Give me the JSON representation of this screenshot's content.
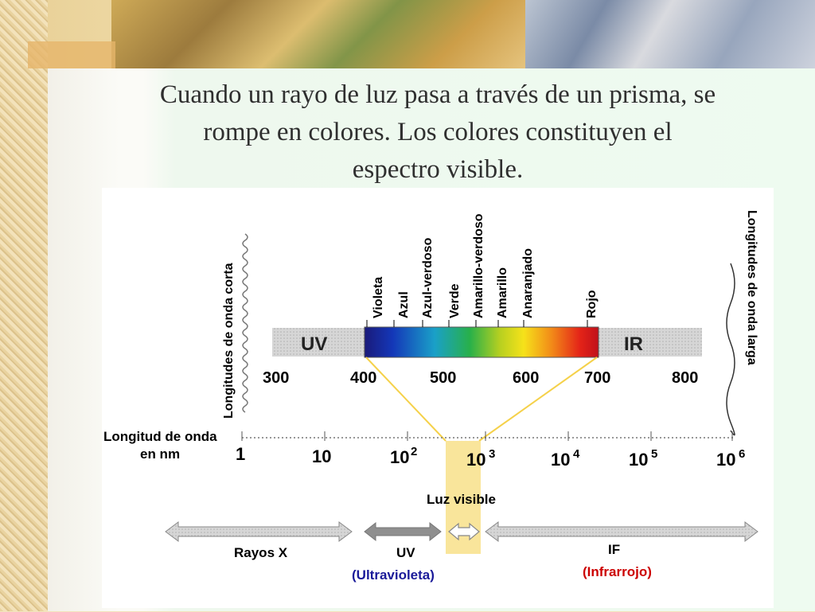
{
  "slide": {
    "title_lines": [
      "Cuando un rayo de luz pasa a través de un prisma, se",
      "rompe en colores. Los colores constituyen el",
      "espectro visible."
    ]
  },
  "figure": {
    "left_label": "Longitudes de onda corta",
    "right_label": "Longitudes de onda larga",
    "colors": [
      "Violeta",
      "Azul",
      "Azul-verdoso",
      "Verde",
      "Amarillo-verdoso",
      "Amarillo",
      "Anaranjado",
      "Rojo"
    ],
    "band_uv_label": "UV",
    "band_ir_label": "IR",
    "nm_ticks": [
      "300",
      "400",
      "500",
      "600",
      "700",
      "800"
    ],
    "axis_title_line1": "Longitud de onda",
    "axis_title_line2": "en nm",
    "log_ticks": [
      {
        "base": "1",
        "exp": ""
      },
      {
        "base": "10",
        "exp": ""
      },
      {
        "base": "10",
        "exp": "2"
      },
      {
        "base": "10",
        "exp": "3"
      },
      {
        "base": "10",
        "exp": "4"
      },
      {
        "base": "10",
        "exp": "5"
      },
      {
        "base": "10",
        "exp": "6"
      }
    ],
    "visible_label": "Luz visible",
    "xray_label": "Rayos X",
    "uv_label": "UV",
    "uv_sublabel": "(Ultravioleta)",
    "ir_label": "IF",
    "ir_sublabel": "(Infrarrojo)",
    "ir_sublabel_color": "#cc0000",
    "uv_sublabel_color": "#1a1a99",
    "arrow_color": "#999999",
    "highlight_color": "#f8e08a"
  }
}
